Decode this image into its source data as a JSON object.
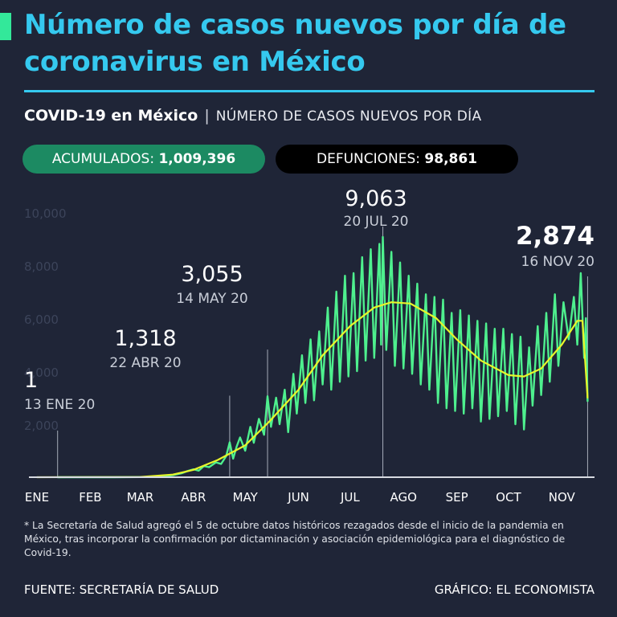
{
  "header": {
    "title": "Número de casos nuevos por día de coronavirus en México",
    "subtitle_strong": "COVID-19 en México",
    "subtitle_sep": "|",
    "subtitle_rest": "NÚMERO DE CASOS NUEVOS POR DÍA"
  },
  "stats": {
    "accumulated_label": "ACUMULADOS: ",
    "accumulated_value": "1,009,396",
    "deaths_label": "DEFUNCIONES: ",
    "deaths_value": "98,861"
  },
  "colors": {
    "background": "#1f2537",
    "title": "#35c9ef",
    "series_daily": "#4ef08e",
    "series_trend": "#e8f52a",
    "pill_green": "#1c8a62",
    "pill_black": "#000000"
  },
  "chart_data": {
    "type": "line",
    "title": "",
    "xlabel": "",
    "ylabel": "",
    "ylim": [
      0,
      10000
    ],
    "yticks": [
      2000,
      4000,
      6000,
      8000,
      10000
    ],
    "ytick_labels": [
      "2,000",
      "4,000",
      "6,000",
      "8,000",
      "10,000"
    ],
    "grid": false,
    "x_domain": [
      "2020-01-01",
      "2020-11-20"
    ],
    "x_ticks": [
      {
        "date": "2020-01-01",
        "label": "ENE"
      },
      {
        "date": "2020-02-01",
        "label": "FEB"
      },
      {
        "date": "2020-03-01",
        "label": "MAR"
      },
      {
        "date": "2020-04-01",
        "label": "ABR"
      },
      {
        "date": "2020-05-01",
        "label": "MAY"
      },
      {
        "date": "2020-06-01",
        "label": "JUN"
      },
      {
        "date": "2020-07-01",
        "label": "JUL"
      },
      {
        "date": "2020-08-01",
        "label": "AGO"
      },
      {
        "date": "2020-09-01",
        "label": "SEP"
      },
      {
        "date": "2020-10-01",
        "label": "OCT"
      },
      {
        "date": "2020-11-01",
        "label": "NOV"
      }
    ],
    "series": [
      {
        "key": "daily",
        "color": "#4ef08e",
        "points": [
          [
            "2020-01-13",
            1
          ],
          [
            "2020-02-15",
            0
          ],
          [
            "2020-03-01",
            5
          ],
          [
            "2020-03-10",
            15
          ],
          [
            "2020-03-20",
            80
          ],
          [
            "2020-03-25",
            150
          ],
          [
            "2020-03-28",
            220
          ],
          [
            "2020-04-01",
            300
          ],
          [
            "2020-04-04",
            250
          ],
          [
            "2020-04-07",
            420
          ],
          [
            "2020-04-10",
            380
          ],
          [
            "2020-04-14",
            560
          ],
          [
            "2020-04-17",
            500
          ],
          [
            "2020-04-20",
            800
          ],
          [
            "2020-04-22",
            1318
          ],
          [
            "2020-04-24",
            700
          ],
          [
            "2020-04-26",
            1150
          ],
          [
            "2020-04-28",
            1500
          ],
          [
            "2020-05-01",
            1000
          ],
          [
            "2020-05-04",
            1900
          ],
          [
            "2020-05-06",
            1300
          ],
          [
            "2020-05-09",
            2200
          ],
          [
            "2020-05-12",
            1600
          ],
          [
            "2020-05-14",
            3055
          ],
          [
            "2020-05-16",
            1900
          ],
          [
            "2020-05-19",
            3000
          ],
          [
            "2020-05-21",
            2000
          ],
          [
            "2020-05-24",
            3300
          ],
          [
            "2020-05-26",
            1700
          ],
          [
            "2020-05-29",
            3900
          ],
          [
            "2020-05-31",
            2400
          ],
          [
            "2020-06-03",
            4600
          ],
          [
            "2020-06-05",
            2800
          ],
          [
            "2020-06-08",
            5200
          ],
          [
            "2020-06-10",
            2900
          ],
          [
            "2020-06-13",
            5500
          ],
          [
            "2020-06-15",
            3500
          ],
          [
            "2020-06-18",
            6400
          ],
          [
            "2020-06-20",
            3300
          ],
          [
            "2020-06-23",
            7000
          ],
          [
            "2020-06-25",
            3600
          ],
          [
            "2020-06-28",
            7600
          ],
          [
            "2020-06-30",
            3800
          ],
          [
            "2020-07-03",
            7700
          ],
          [
            "2020-07-05",
            4000
          ],
          [
            "2020-07-08",
            8300
          ],
          [
            "2020-07-10",
            4400
          ],
          [
            "2020-07-13",
            8600
          ],
          [
            "2020-07-15",
            4500
          ],
          [
            "2020-07-18",
            8800
          ],
          [
            "2020-07-19",
            5000
          ],
          [
            "2020-07-20",
            9063
          ],
          [
            "2020-07-22",
            4800
          ],
          [
            "2020-07-25",
            8500
          ],
          [
            "2020-07-27",
            4200
          ],
          [
            "2020-07-30",
            8100
          ],
          [
            "2020-08-01",
            4100
          ],
          [
            "2020-08-04",
            7600
          ],
          [
            "2020-08-06",
            3900
          ],
          [
            "2020-08-09",
            7300
          ],
          [
            "2020-08-11",
            3500
          ],
          [
            "2020-08-14",
            6900
          ],
          [
            "2020-08-16",
            3300
          ],
          [
            "2020-08-19",
            6800
          ],
          [
            "2020-08-21",
            2800
          ],
          [
            "2020-08-24",
            6700
          ],
          [
            "2020-08-26",
            2600
          ],
          [
            "2020-08-29",
            6200
          ],
          [
            "2020-08-31",
            2500
          ],
          [
            "2020-09-03",
            6300
          ],
          [
            "2020-09-05",
            2400
          ],
          [
            "2020-09-08",
            6100
          ],
          [
            "2020-09-10",
            2600
          ],
          [
            "2020-09-13",
            5900
          ],
          [
            "2020-09-15",
            2100
          ],
          [
            "2020-09-18",
            5800
          ],
          [
            "2020-09-20",
            2200
          ],
          [
            "2020-09-23",
            5600
          ],
          [
            "2020-09-25",
            2300
          ],
          [
            "2020-09-28",
            5600
          ],
          [
            "2020-09-30",
            2500
          ],
          [
            "2020-10-03",
            5400
          ],
          [
            "2020-10-05",
            2000
          ],
          [
            "2020-10-08",
            5300
          ],
          [
            "2020-10-10",
            1800
          ],
          [
            "2020-10-13",
            4900
          ],
          [
            "2020-10-15",
            2700
          ],
          [
            "2020-10-18",
            5700
          ],
          [
            "2020-10-20",
            3100
          ],
          [
            "2020-10-23",
            6200
          ],
          [
            "2020-10-25",
            3600
          ],
          [
            "2020-10-28",
            6900
          ],
          [
            "2020-10-30",
            4200
          ],
          [
            "2020-11-02",
            6600
          ],
          [
            "2020-11-05",
            5200
          ],
          [
            "2020-11-08",
            6800
          ],
          [
            "2020-11-10",
            5000
          ],
          [
            "2020-11-12",
            7700
          ],
          [
            "2020-11-14",
            4500
          ],
          [
            "2020-11-15",
            6000
          ],
          [
            "2020-11-16",
            2874
          ]
        ]
      },
      {
        "key": "trend",
        "color": "#e8f52a",
        "points": [
          [
            "2020-01-01",
            0
          ],
          [
            "2020-03-01",
            10
          ],
          [
            "2020-03-20",
            100
          ],
          [
            "2020-04-01",
            280
          ],
          [
            "2020-04-15",
            650
          ],
          [
            "2020-05-01",
            1200
          ],
          [
            "2020-05-15",
            2100
          ],
          [
            "2020-06-01",
            3300
          ],
          [
            "2020-06-15",
            4600
          ],
          [
            "2020-07-01",
            5700
          ],
          [
            "2020-07-15",
            6400
          ],
          [
            "2020-07-25",
            6600
          ],
          [
            "2020-08-05",
            6550
          ],
          [
            "2020-08-20",
            6000
          ],
          [
            "2020-09-01",
            5200
          ],
          [
            "2020-09-15",
            4400
          ],
          [
            "2020-10-01",
            3850
          ],
          [
            "2020-10-10",
            3800
          ],
          [
            "2020-10-20",
            4100
          ],
          [
            "2020-11-01",
            5000
          ],
          [
            "2020-11-10",
            5900
          ],
          [
            "2020-11-13",
            5900
          ],
          [
            "2020-11-16",
            3000
          ]
        ]
      }
    ],
    "annotations": [
      {
        "value": "1",
        "date_label": "13 ENE 20",
        "x": "2020-01-13",
        "y": 1,
        "emphasis": false
      },
      {
        "value": "1,318",
        "date_label": "22 ABR 20",
        "x": "2020-04-22",
        "y": 1318,
        "emphasis": false
      },
      {
        "value": "3,055",
        "date_label": "14 MAY 20",
        "x": "2020-05-14",
        "y": 3055,
        "emphasis": false
      },
      {
        "value": "9,063",
        "date_label": "20 JUL 20",
        "x": "2020-07-20",
        "y": 9063,
        "emphasis": false
      },
      {
        "value": "2,874",
        "date_label": "16 NOV 20",
        "x": "2020-11-16",
        "y": 2874,
        "emphasis": true
      }
    ]
  },
  "footnote": "* La Secretaría de Salud agregó el 5 de octubre datos históricos rezagados desde el inicio de la pandemia en México, tras incorporar la confirmación por dictaminación y asociación epidemiológica para el diagnóstico de Covid-19.",
  "source": "FUENTE: SECRETARÍA DE SALUD",
  "credit": "GRÁFICO: EL ECONOMISTA"
}
